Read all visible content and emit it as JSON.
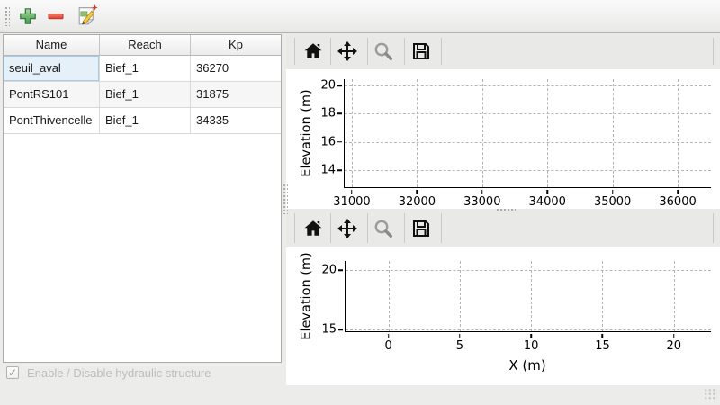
{
  "main_toolbar": {
    "buttons": [
      {
        "name": "add-structure",
        "icon": "plus-icon"
      },
      {
        "name": "remove-structure",
        "icon": "minus-icon"
      },
      {
        "name": "edit-structure",
        "icon": "edit-compose-icon"
      }
    ]
  },
  "table": {
    "headers": [
      "Name",
      "Reach",
      "Kp"
    ],
    "rows": [
      {
        "name": "seuil_aval",
        "reach": "Bief_1",
        "kp": "36270",
        "selected": true
      },
      {
        "name": "PontRS101",
        "reach": "Bief_1",
        "kp": "31875",
        "selected": false
      },
      {
        "name": "PontThivencelle",
        "reach": "Bief_1",
        "kp": "34335",
        "selected": false
      }
    ]
  },
  "checkbox": {
    "label": "Enable / Disable hydraulic structure",
    "mark": "✓",
    "checked": true,
    "enabled": false
  },
  "chart_toolbar": {
    "icons": [
      "home-icon",
      "pan-icon",
      "zoom-icon",
      "save-icon"
    ]
  },
  "chart_data": [
    {
      "type": "line",
      "title": "",
      "xlabel": "",
      "ylabel": "Elevation (m)",
      "xlim": [
        30890,
        36510
      ],
      "ylim": [
        12.8,
        20.45
      ],
      "xticks": [
        31000,
        32000,
        33000,
        34000,
        35000,
        36000
      ],
      "yticks": [
        14,
        16,
        18,
        20
      ],
      "grid": true,
      "legend": false,
      "series": []
    },
    {
      "type": "line",
      "title": "",
      "xlabel": "X (m)",
      "ylabel": "Elevation (m)",
      "xlim": [
        -3,
        22.6
      ],
      "ylim": [
        14.85,
        20.76
      ],
      "xticks": [
        0,
        5,
        10,
        15,
        20
      ],
      "yticks": [
        15,
        20
      ],
      "grid": true,
      "legend": false,
      "series": []
    }
  ],
  "colors": {
    "window_bg": "#ececeb",
    "panel_bg": "#ffffff",
    "toolbar_bg": "#e9e9e8",
    "selected_cell_bg": "#e5f0f9",
    "selected_cell_border": "#a9c9e2",
    "gridline": "#b4b4b4",
    "disabled_text": "#bdbdbb",
    "add_green": "#4f9e52",
    "remove_red": "#e2402e"
  }
}
